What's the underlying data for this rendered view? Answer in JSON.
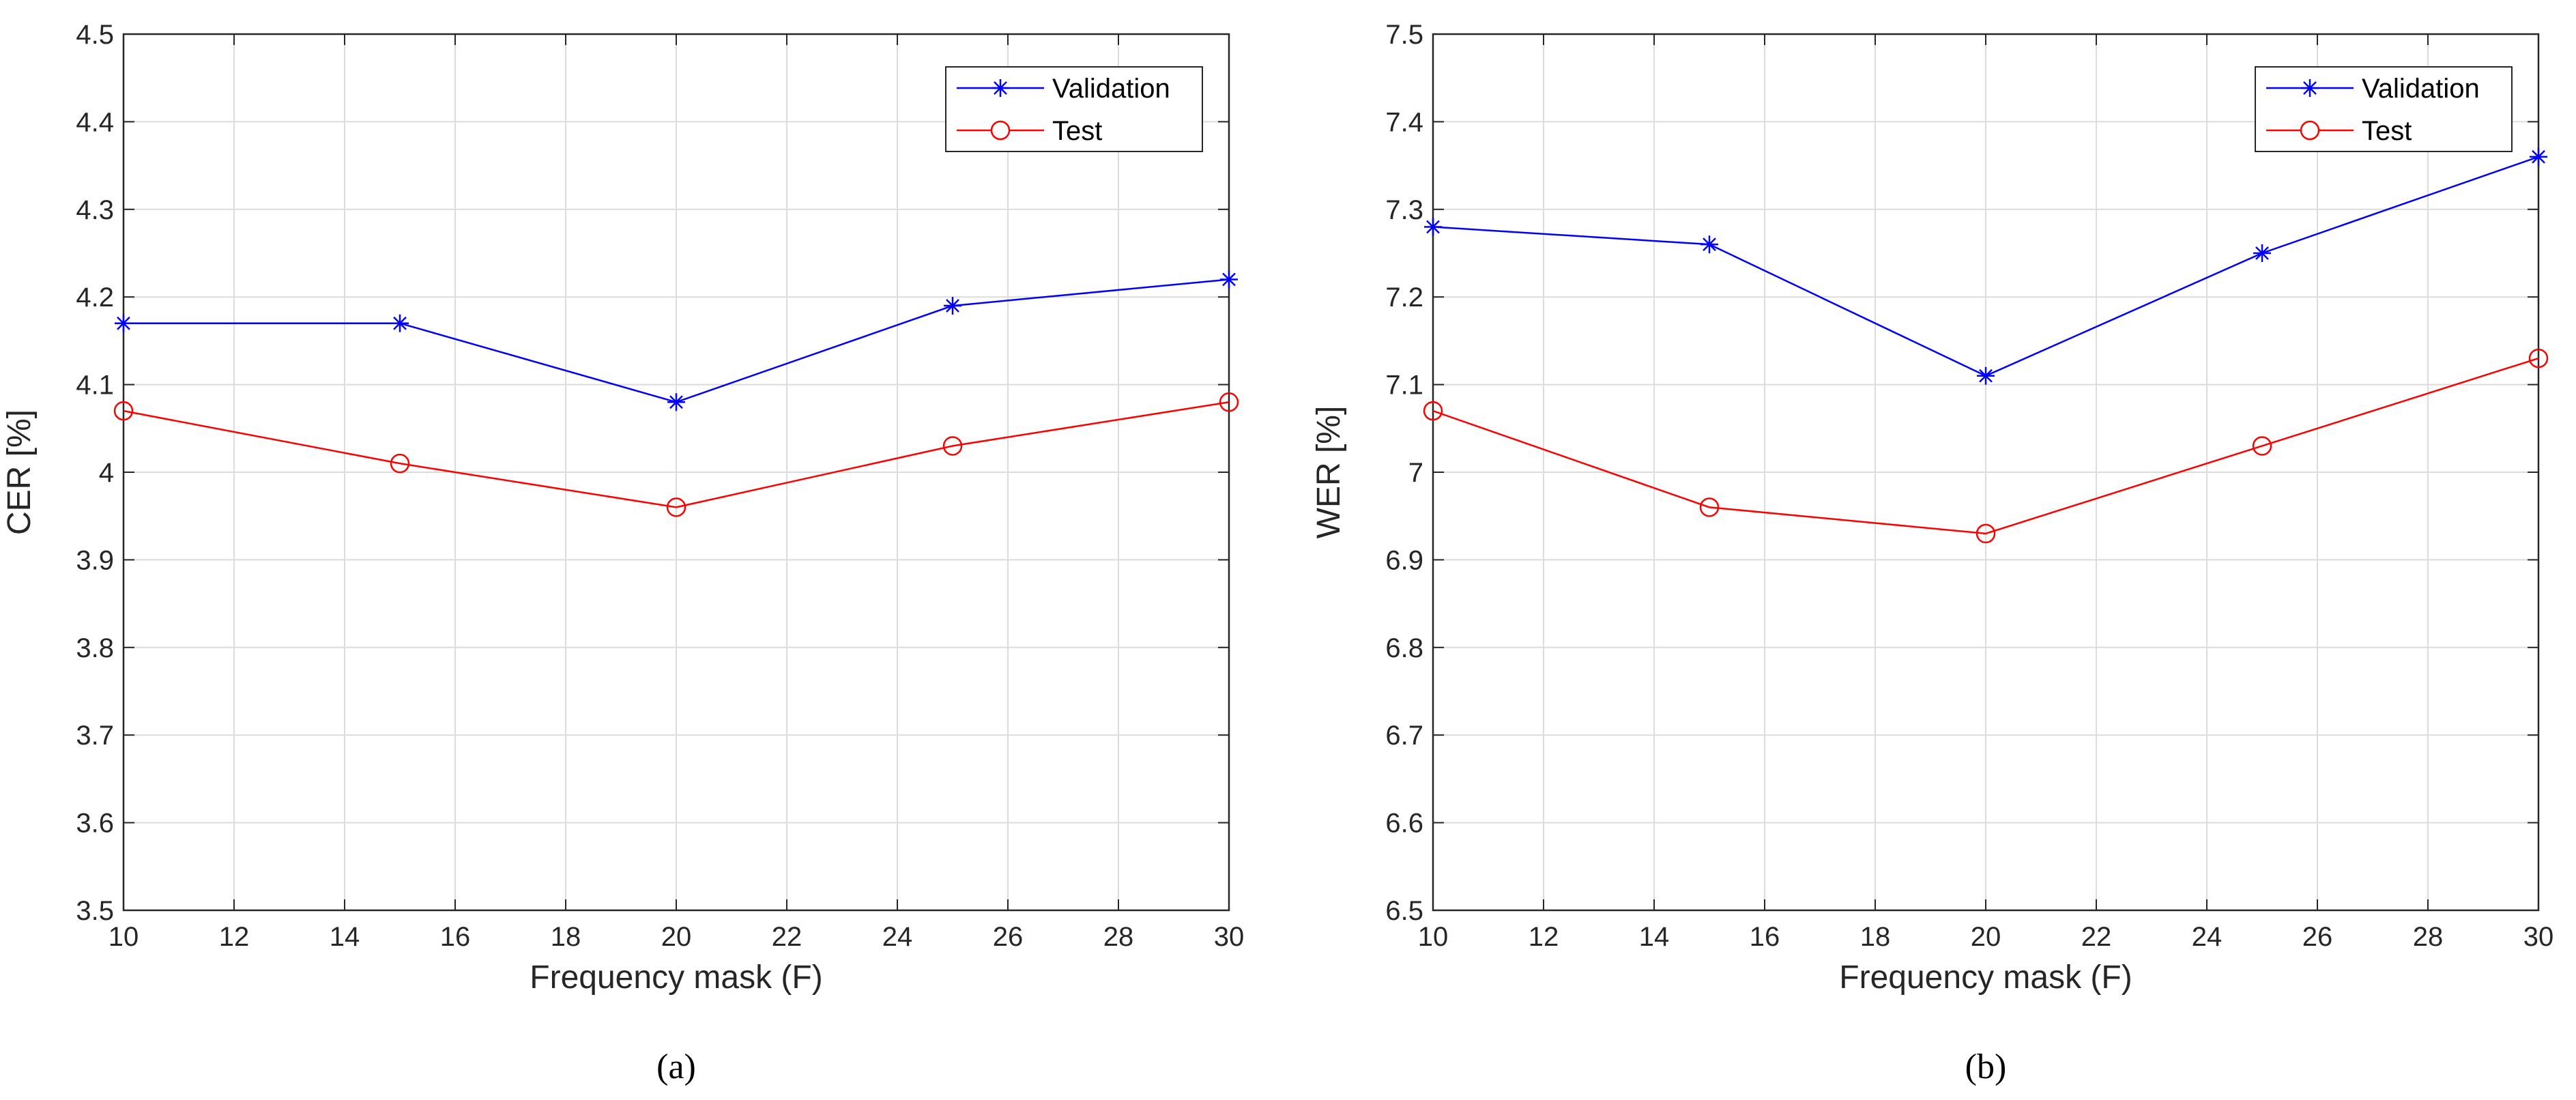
{
  "chart_data": [
    {
      "type": "line",
      "panel_label": "(a)",
      "xlabel": "Frequency mask (F)",
      "ylabel": "CER [%]",
      "xlim": [
        10,
        30
      ],
      "ylim": [
        3.5,
        4.5
      ],
      "xticks": [
        "10",
        "12",
        "14",
        "16",
        "18",
        "20",
        "22",
        "24",
        "26",
        "28",
        "30"
      ],
      "yticks": [
        "3.5",
        "3.6",
        "3.7",
        "3.8",
        "3.9",
        "4",
        "4.1",
        "4.2",
        "4.3",
        "4.4",
        "4.5"
      ],
      "grid": true,
      "legend_position": "top-right",
      "x": [
        10,
        15,
        20,
        25,
        30
      ],
      "series": [
        {
          "name": "Validation",
          "color": "#0000ff",
          "marker": "asterisk",
          "values": [
            4.17,
            4.17,
            4.08,
            4.19,
            4.22
          ]
        },
        {
          "name": "Test",
          "color": "#ff0000",
          "marker": "circle",
          "values": [
            4.07,
            4.01,
            3.96,
            4.03,
            4.08
          ]
        }
      ]
    },
    {
      "type": "line",
      "panel_label": "(b)",
      "xlabel": "Frequency mask (F)",
      "ylabel": "WER [%]",
      "xlim": [
        10,
        30
      ],
      "ylim": [
        6.5,
        7.5
      ],
      "xticks": [
        "10",
        "12",
        "14",
        "16",
        "18",
        "20",
        "22",
        "24",
        "26",
        "28",
        "30"
      ],
      "yticks": [
        "6.5",
        "6.6",
        "6.7",
        "6.8",
        "6.9",
        "7",
        "7.1",
        "7.2",
        "7.3",
        "7.4",
        "7.5"
      ],
      "grid": true,
      "legend_position": "top-right",
      "x": [
        10,
        15,
        20,
        25,
        30
      ],
      "series": [
        {
          "name": "Validation",
          "color": "#0000ff",
          "marker": "asterisk",
          "values": [
            7.28,
            7.26,
            7.11,
            7.25,
            7.36
          ]
        },
        {
          "name": "Test",
          "color": "#ff0000",
          "marker": "circle",
          "values": [
            7.07,
            6.96,
            6.93,
            7.03,
            7.13
          ]
        }
      ]
    }
  ]
}
